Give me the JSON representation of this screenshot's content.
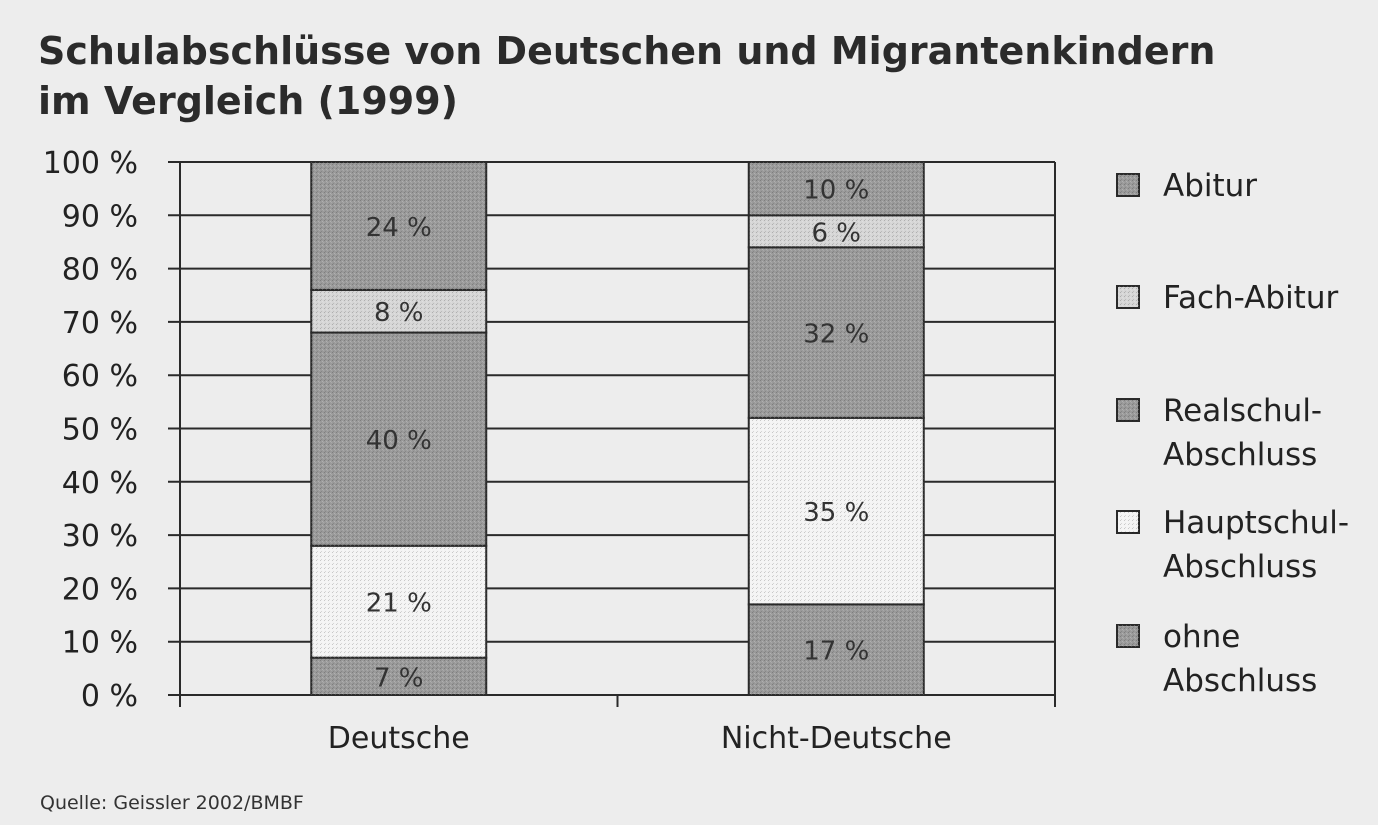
{
  "title_line1": "Schulabschlüsse von Deutschen und Migrantenkindern",
  "title_line2": "im Vergleich (1999)",
  "source": "Quelle: Geissler 2002/BMBF",
  "chart_data": {
    "type": "bar",
    "stacked": true,
    "categories": [
      "Deutsche",
      "Nicht-Deutsche"
    ],
    "ylim": [
      0,
      100
    ],
    "yticks": [
      0,
      10,
      20,
      30,
      40,
      50,
      60,
      70,
      80,
      90,
      100
    ],
    "ytick_labels": [
      "0 %",
      "10 %",
      "20 %",
      "30 %",
      "40 %",
      "50 %",
      "60 %",
      "70 %",
      "80 %",
      "90 %",
      "100 %"
    ],
    "grid": true,
    "legend_position": "right",
    "series": [
      {
        "name": "ohne Abschluss",
        "legend_lines": [
          "ohne",
          "Abschluss"
        ],
        "values": [
          7,
          17
        ],
        "labels": [
          "7 %",
          "17 %"
        ],
        "color": "#9a9a9a"
      },
      {
        "name": "Hauptschul-Abschluss",
        "legend_lines": [
          "Hauptschul-",
          "Abschluss"
        ],
        "values": [
          21,
          35
        ],
        "labels": [
          "21 %",
          "35 %"
        ],
        "color": "#f4f4f4"
      },
      {
        "name": "Realschul-Abschluss",
        "legend_lines": [
          "Realschul-",
          "Abschluss"
        ],
        "values": [
          40,
          32
        ],
        "labels": [
          "40 %",
          "32 %"
        ],
        "color": "#9a9a9a"
      },
      {
        "name": "Fach-Abitur",
        "legend_lines": [
          "Fach-Abitur"
        ],
        "values": [
          8,
          6
        ],
        "labels": [
          "8 %",
          "6 %"
        ],
        "color": "#d6d6d6"
      },
      {
        "name": "Abitur",
        "legend_lines": [
          "Abitur"
        ],
        "values": [
          24,
          10
        ],
        "labels": [
          "24 %",
          "10 %"
        ],
        "color": "#9a9a9a"
      }
    ]
  }
}
